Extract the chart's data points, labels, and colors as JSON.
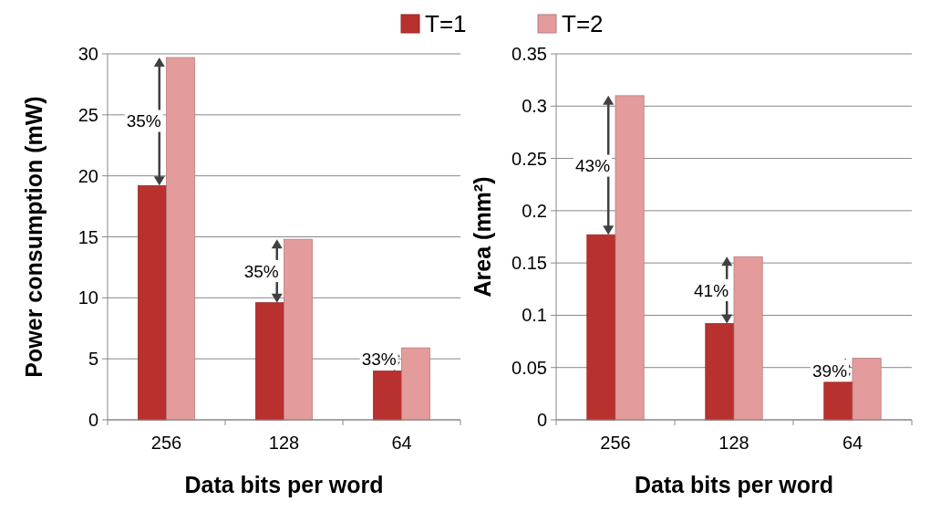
{
  "chart_data": [
    {
      "type": "bar",
      "ylabel": "Power consumption (mW)",
      "xlabel": "Data bits per word",
      "categories": [
        "256",
        "128",
        "64"
      ],
      "series": [
        {
          "name": "T=1",
          "color": "#b8312f",
          "values": [
            19.2,
            9.6,
            4.0
          ]
        },
        {
          "name": "T=2",
          "color": "#e39b9b",
          "values": [
            29.7,
            14.8,
            5.9
          ]
        }
      ],
      "ylim": [
        0,
        30
      ],
      "yticks": [
        0,
        5,
        10,
        15,
        20,
        25,
        30
      ],
      "grid": "y",
      "legend": "top",
      "annotations": [
        {
          "text": "35%",
          "x": "256",
          "y": 24.5
        },
        {
          "text": "35%",
          "x": "128",
          "y": 12.2
        },
        {
          "text": "33%",
          "x": "64",
          "y": 5
        }
      ]
    },
    {
      "type": "bar",
      "ylabel": "Area (mm²)",
      "xlabel": "Data bits per word",
      "categories": [
        "256",
        "128",
        "64"
      ],
      "series": [
        {
          "color": "#b8312f",
          "values": [
            0.177,
            0.092,
            0.036
          ]
        },
        {
          "color": "#e39b9b",
          "values": [
            0.31,
            0.156,
            0.059
          ]
        }
      ],
      "ylim": [
        0,
        0.35
      ],
      "yticks": [
        0,
        0.05,
        0.1,
        0.15,
        0.2,
        0.25,
        0.3,
        0.35
      ],
      "grid": "y",
      "annotations": [
        {
          "text": "43%",
          "x": "256",
          "y": 0.243
        },
        {
          "text": "41%",
          "x": "128",
          "y": 0.124
        },
        {
          "text": "39%",
          "x": "64",
          "y": 0.047
        }
      ]
    }
  ]
}
